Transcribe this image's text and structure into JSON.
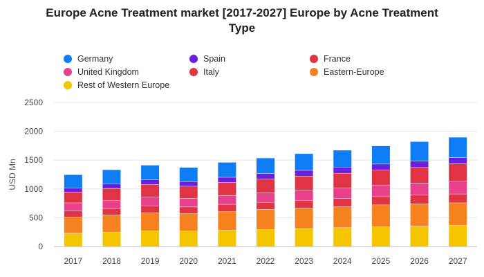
{
  "chart_data": {
    "type": "bar",
    "stacked": true,
    "title": "Europe Acne Treatment market [2017-2027] Europe by Acne Treatment Type",
    "xlabel": "",
    "ylabel": "USD Mn",
    "ylim": [
      0,
      2500
    ],
    "yticks": [
      0,
      500,
      1000,
      1500,
      2000,
      2500
    ],
    "grid": true,
    "legend_position": "top",
    "categories": [
      "2017",
      "2018",
      "2019",
      "2020",
      "2021",
      "2022",
      "2023",
      "2024",
      "2025",
      "2026",
      "2027"
    ],
    "series": [
      {
        "name": "Rest of Western Europe",
        "color": "#f5c500",
        "values": [
          235,
          250,
          275,
          270,
          285,
          300,
          315,
          330,
          345,
          355,
          370
        ]
      },
      {
        "name": "Eastern-Europe",
        "color": "#f5821f",
        "values": [
          280,
          300,
          315,
          305,
          325,
          345,
          355,
          365,
          380,
          390,
          390
        ]
      },
      {
        "name": "Italy",
        "color": "#e03444",
        "values": [
          105,
          105,
          120,
          115,
          125,
          125,
          135,
          140,
          145,
          150,
          155
        ]
      },
      {
        "name": "United Kingdom",
        "color": "#e8408a",
        "values": [
          140,
          150,
          155,
          150,
          155,
          165,
          175,
          185,
          200,
          210,
          225
        ]
      },
      {
        "name": "France",
        "color": "#e03444",
        "values": [
          190,
          205,
          215,
          210,
          225,
          240,
          245,
          255,
          260,
          270,
          300
        ]
      },
      {
        "name": "Spain",
        "color": "#6a1ee0",
        "values": [
          70,
          80,
          80,
          80,
          90,
          95,
          100,
          105,
          105,
          110,
          105
        ]
      },
      {
        "name": "Germany",
        "color": "#0e7cf5",
        "values": [
          230,
          245,
          255,
          245,
          260,
          270,
          290,
          295,
          315,
          340,
          355
        ]
      }
    ]
  }
}
